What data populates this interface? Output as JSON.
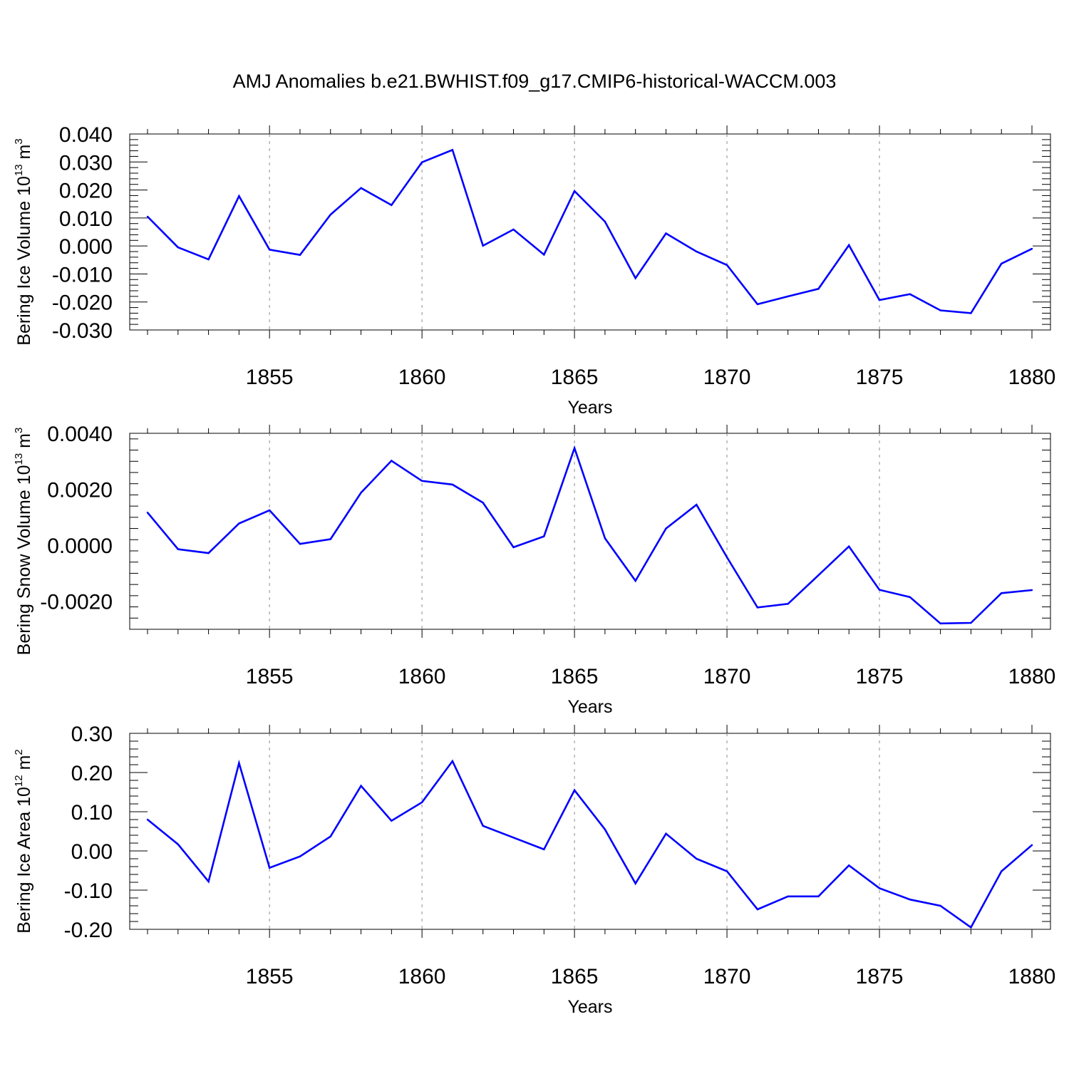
{
  "title": "AMJ Anomalies b.e21.BWHIST.f09_g17.CMIP6-historical-WACCM.003",
  "colors": {
    "series_line": "#0000ff",
    "grid_line": "#a0a0a0",
    "axis": "#000000"
  },
  "chart_data": [
    {
      "type": "line",
      "ylabel": "Bering Ice Volume",
      "yunit": {
        "base": "10",
        "exp": "13",
        "unit": "m",
        "unit_exp": "3"
      },
      "xlabel": "Years",
      "xlim": [
        1851,
        1880
      ],
      "ylim": [
        -0.03,
        0.04
      ],
      "xticks": [
        "1855",
        "1860",
        "1865",
        "1870",
        "1875",
        "1880"
      ],
      "yticks": [
        "0.040",
        "0.030",
        "0.020",
        "0.010",
        "0.000",
        "-0.010",
        "-0.020",
        "-0.030"
      ],
      "grid": "vertical dashed at labeled x ticks",
      "x": [
        1851,
        1852,
        1853,
        1854,
        1855,
        1856,
        1857,
        1858,
        1859,
        1860,
        1861,
        1862,
        1863,
        1864,
        1865,
        1866,
        1867,
        1868,
        1869,
        1870,
        1871,
        1872,
        1873,
        1874,
        1875,
        1876,
        1877,
        1878,
        1879,
        1880
      ],
      "values": [
        0.0105,
        -0.0005,
        -0.0048,
        0.0178,
        -0.0013,
        -0.0032,
        0.0112,
        0.0207,
        0.0146,
        0.0299,
        0.0343,
        0.0001,
        0.0059,
        -0.0031,
        0.0196,
        0.0087,
        -0.0115,
        0.0045,
        -0.002,
        -0.0068,
        -0.0208,
        -0.018,
        -0.0153,
        0.0003,
        -0.0193,
        -0.0172,
        -0.023,
        -0.024,
        -0.0063,
        -0.001
      ]
    },
    {
      "type": "line",
      "ylabel": "Bering Snow Volume",
      "yunit": {
        "base": "10",
        "exp": "13",
        "unit": "m",
        "unit_exp": "3"
      },
      "xlabel": "Years",
      "xlim": [
        1851,
        1880
      ],
      "ylim": [
        -0.003,
        0.004
      ],
      "xticks": [
        "1855",
        "1860",
        "1865",
        "1870",
        "1875",
        "1880"
      ],
      "yticks": [
        "0.0040",
        "0.0020",
        "0.0000",
        "-0.0020"
      ],
      "grid": "vertical dashed at labeled x ticks",
      "x": [
        1851,
        1852,
        1853,
        1854,
        1855,
        1856,
        1857,
        1858,
        1859,
        1860,
        1861,
        1862,
        1863,
        1864,
        1865,
        1866,
        1867,
        1868,
        1869,
        1870,
        1871,
        1872,
        1873,
        1874,
        1875,
        1876,
        1877,
        1878,
        1879,
        1880
      ],
      "values": [
        0.00117,
        -0.00014,
        -0.00028,
        0.00078,
        0.00125,
        5e-05,
        0.00022,
        0.00188,
        0.00302,
        0.0023,
        0.00217,
        0.00152,
        -7e-05,
        0.00032,
        0.00347,
        0.00025,
        -0.00127,
        0.0006,
        0.00145,
        -0.00043,
        -0.00222,
        -0.00209,
        -0.00107,
        -4e-05,
        -0.00159,
        -0.00185,
        -0.00279,
        -0.00277,
        -0.00171,
        -0.0016
      ]
    },
    {
      "type": "line",
      "ylabel": "Bering Ice Area",
      "yunit": {
        "base": "10",
        "exp": "12",
        "unit": "m",
        "unit_exp": "2"
      },
      "xlabel": "Years",
      "xlim": [
        1851,
        1880
      ],
      "ylim": [
        -0.2,
        0.3
      ],
      "xticks": [
        "1855",
        "1860",
        "1865",
        "1870",
        "1875",
        "1880"
      ],
      "yticks": [
        "0.30",
        "0.20",
        "0.10",
        "0.00",
        "-0.10",
        "-0.20"
      ],
      "grid": "vertical dashed at labeled x ticks",
      "x": [
        1851,
        1852,
        1853,
        1854,
        1855,
        1856,
        1857,
        1858,
        1859,
        1860,
        1861,
        1862,
        1863,
        1864,
        1865,
        1866,
        1867,
        1868,
        1869,
        1870,
        1871,
        1872,
        1873,
        1874,
        1875,
        1876,
        1877,
        1878,
        1879,
        1880
      ],
      "values": [
        0.08,
        0.017,
        -0.078,
        0.224,
        -0.043,
        -0.014,
        0.037,
        0.166,
        0.077,
        0.124,
        0.229,
        0.064,
        0.034,
        0.004,
        0.155,
        0.055,
        -0.083,
        0.044,
        -0.02,
        -0.052,
        -0.149,
        -0.116,
        -0.116,
        -0.037,
        -0.095,
        -0.124,
        -0.14,
        -0.195,
        -0.052,
        0.015
      ]
    }
  ]
}
